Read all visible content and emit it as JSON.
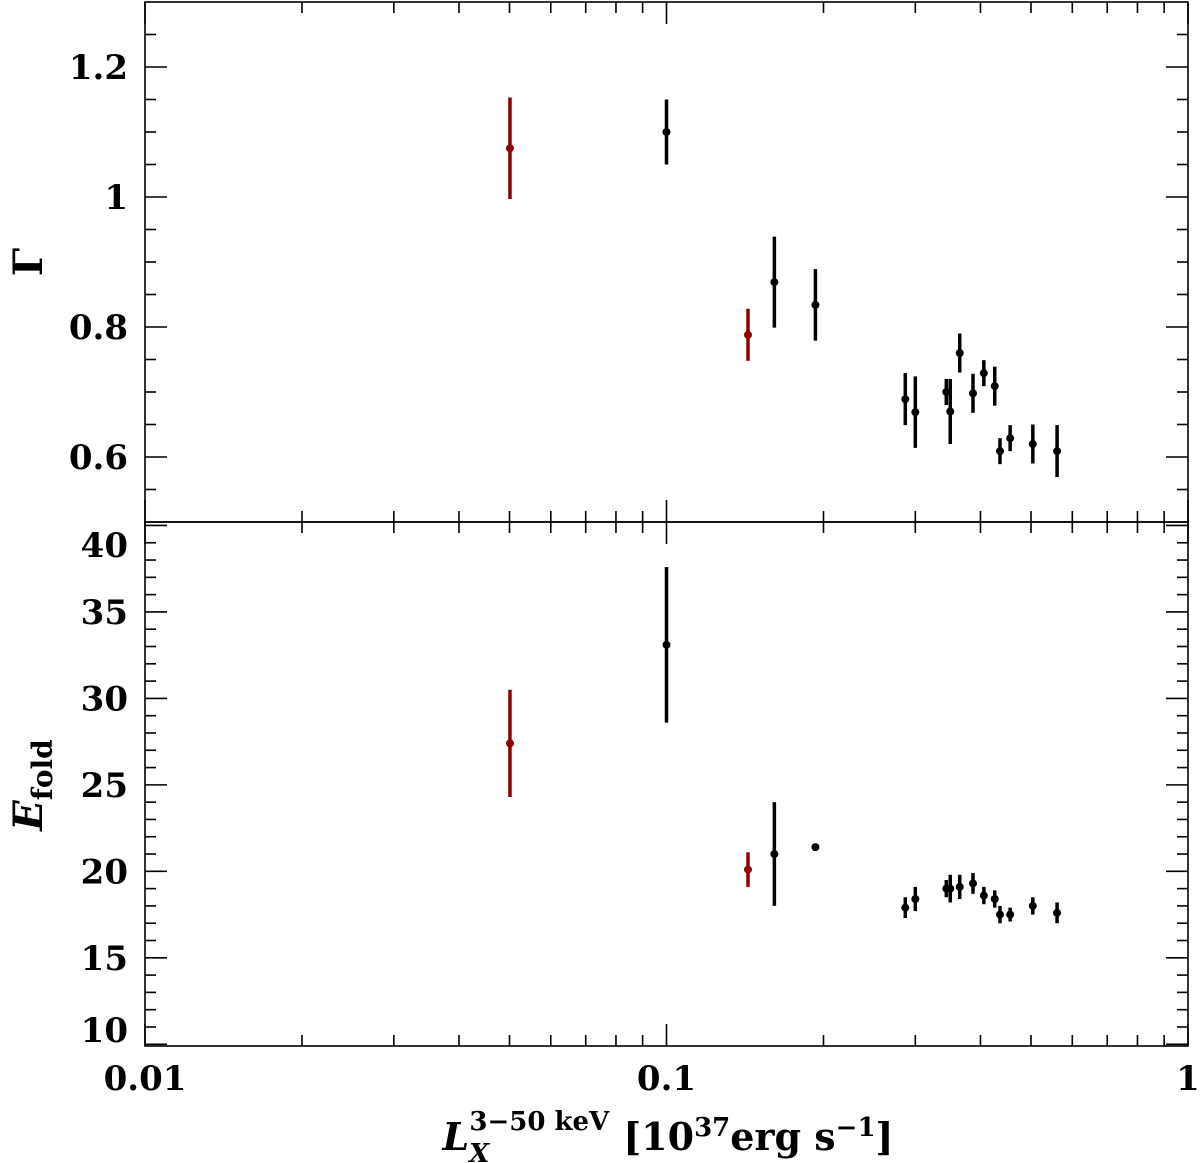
{
  "chart_data": [
    {
      "type": "scatter",
      "ylabel": "Γ",
      "ylim": [
        0.5,
        1.3
      ],
      "yticks": [
        0.6,
        0.8,
        1.0,
        1.2
      ],
      "yminorticks": [
        0.55,
        0.65,
        0.7,
        0.75,
        0.85,
        0.9,
        0.95,
        1.05,
        1.1,
        1.15,
        1.25
      ],
      "series": [
        {
          "color": "#8b0000",
          "x": [
            0.0501,
            0.1433
          ],
          "values": [
            1.075,
            0.788
          ],
          "errors": [
            0.078,
            0.04
          ]
        },
        {
          "color": "#000000",
          "x": [
            0.1,
            0.161,
            0.193,
            0.287,
            0.3,
            0.344,
            0.35,
            0.365,
            0.387,
            0.406,
            0.426,
            0.436,
            0.456,
            0.504,
            0.561
          ],
          "values": [
            1.1,
            0.869,
            0.834,
            0.689,
            0.669,
            0.7,
            0.67,
            0.76,
            0.698,
            0.729,
            0.709,
            0.609,
            0.629,
            0.62,
            0.609
          ],
          "errors": [
            0.05,
            0.07,
            0.055,
            0.04,
            0.055,
            0.02,
            0.05,
            0.03,
            0.03,
            0.02,
            0.03,
            0.02,
            0.02,
            0.03,
            0.04
          ]
        }
      ]
    },
    {
      "type": "scatter",
      "ylabel": {
        "symbol": "E",
        "subscript": "fold"
      },
      "xlabel": {
        "symbol": "L",
        "subscript": "X",
        "superscript": "3−50 keV",
        "unit": "[10",
        "unit_exponent": "37",
        "unit_rest": "erg s",
        "rest_exponent": "−1",
        "close": "]"
      },
      "xscale": "log",
      "xlim": [
        0.01,
        1
      ],
      "xticks": [
        0.01,
        0.1,
        1
      ],
      "xminorticks": [
        0.02,
        0.03,
        0.04,
        0.05,
        0.06,
        0.07,
        0.08,
        0.09,
        0.2,
        0.3,
        0.4,
        0.5,
        0.6,
        0.7,
        0.8,
        0.9
      ],
      "ylim": [
        9.9,
        40.2
      ],
      "yticks": [
        10,
        15,
        20,
        25,
        30,
        35,
        40
      ],
      "yminorticks": [
        11,
        12,
        13,
        14,
        16,
        17,
        18,
        19,
        21,
        22,
        23,
        24,
        26,
        27,
        28,
        29,
        31,
        32,
        33,
        34,
        36,
        37,
        38,
        39
      ],
      "series": [
        {
          "color": "#8b0000",
          "x": [
            0.0501,
            0.1433
          ],
          "values": [
            27.4,
            20.1
          ],
          "errors": [
            3.1,
            1.0
          ]
        },
        {
          "color": "#000000",
          "x": [
            0.1,
            0.161,
            0.193,
            0.287,
            0.3,
            0.344,
            0.35,
            0.365,
            0.387,
            0.406,
            0.426,
            0.436,
            0.456,
            0.504,
            0.561
          ],
          "values": [
            33.1,
            21.0,
            21.4,
            17.9,
            18.4,
            19.0,
            19.0,
            19.1,
            19.3,
            18.6,
            18.4,
            17.5,
            17.5,
            18.0,
            17.6
          ],
          "errors": [
            4.5,
            3.0,
            0.2,
            0.6,
            0.7,
            0.5,
            0.8,
            0.7,
            0.6,
            0.5,
            0.5,
            0.5,
            0.4,
            0.5,
            0.6
          ]
        }
      ]
    }
  ]
}
